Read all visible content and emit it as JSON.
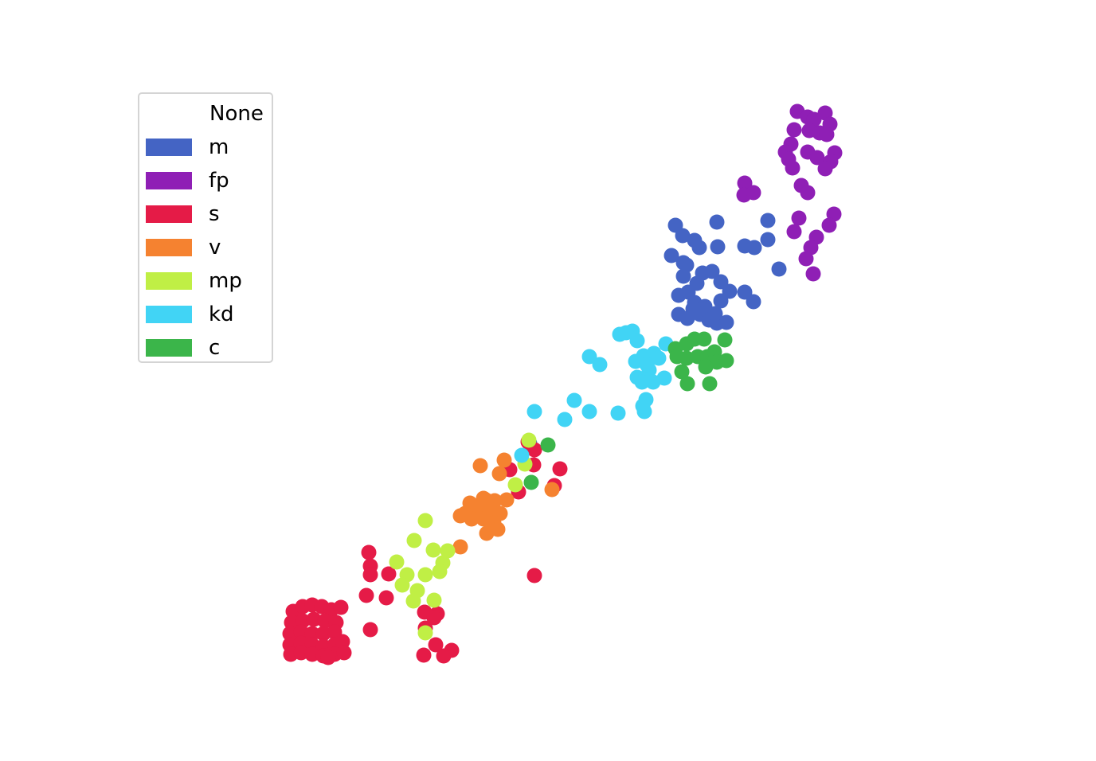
{
  "chart_data": {
    "type": "scatter",
    "legend": {
      "title": "None",
      "placement": "upper-left",
      "entries": [
        {
          "label": "m",
          "color": "#4464c4"
        },
        {
          "label": "fp",
          "color": "#8f1fb5"
        },
        {
          "label": "s",
          "color": "#e51b47"
        },
        {
          "label": "v",
          "color": "#f58230"
        },
        {
          "label": "mp",
          "color": "#c0ef45"
        },
        {
          "label": "kd",
          "color": "#41d4f5"
        },
        {
          "label": "c",
          "color": "#3bb54a"
        }
      ]
    },
    "axes_visible": false,
    "grid": false,
    "xlim": [
      340,
      1060
    ],
    "ylim": [
      840,
      130
    ],
    "series": [
      {
        "name": "m",
        "color": "#4464c4",
        "points": [
          [
            848,
            283
          ],
          [
            857,
            296
          ],
          [
            872,
            302
          ],
          [
            878,
            311
          ],
          [
            900,
            279
          ],
          [
            901,
            310
          ],
          [
            935,
            309
          ],
          [
            947,
            311
          ],
          [
            964,
            277
          ],
          [
            964,
            301
          ],
          [
            978,
            338
          ],
          [
            843,
            321
          ],
          [
            858,
            330
          ],
          [
            862,
            333
          ],
          [
            858,
            347
          ],
          [
            882,
            343
          ],
          [
            894,
            341
          ],
          [
            875,
            356
          ],
          [
            905,
            354
          ],
          [
            916,
            366
          ],
          [
            935,
            367
          ],
          [
            946,
            379
          ],
          [
            852,
            371
          ],
          [
            864,
            367
          ],
          [
            872,
            380
          ],
          [
            885,
            385
          ],
          [
            905,
            378
          ],
          [
            852,
            395
          ],
          [
            863,
            400
          ],
          [
            879,
            395
          ],
          [
            890,
            402
          ],
          [
            900,
            406
          ],
          [
            912,
            405
          ],
          [
            870,
            388
          ],
          [
            898,
            394
          ],
          [
            665,
            557
          ]
        ]
      },
      {
        "name": "fp",
        "color": "#8f1fb5",
        "points": [
          [
            1001,
            140
          ],
          [
            1014,
            147
          ],
          [
            1022,
            150
          ],
          [
            1036,
            142
          ],
          [
            1042,
            156
          ],
          [
            997,
            163
          ],
          [
            1016,
            164
          ],
          [
            1029,
            167
          ],
          [
            1038,
            169
          ],
          [
            993,
            181
          ],
          [
            1014,
            191
          ],
          [
            986,
            191
          ],
          [
            1026,
            198
          ],
          [
            1048,
            192
          ],
          [
            1043,
            203
          ],
          [
            995,
            211
          ],
          [
            1036,
            212
          ],
          [
            935,
            230
          ],
          [
            934,
            245
          ],
          [
            946,
            242
          ],
          [
            1006,
            233
          ],
          [
            1014,
            242
          ],
          [
            1047,
            269
          ],
          [
            1003,
            274
          ],
          [
            1041,
            283
          ],
          [
            997,
            291
          ],
          [
            1025,
            298
          ],
          [
            1018,
            311
          ],
          [
            1012,
            325
          ],
          [
            1021,
            344
          ],
          [
            990,
            200
          ]
        ]
      },
      {
        "name": "s",
        "color": "#e51b47",
        "points": [
          [
            368,
            768
          ],
          [
            380,
            762
          ],
          [
            392,
            760
          ],
          [
            404,
            762
          ],
          [
            416,
            766
          ],
          [
            428,
            763
          ],
          [
            366,
            782
          ],
          [
            380,
            780
          ],
          [
            394,
            778
          ],
          [
            408,
            780
          ],
          [
            422,
            782
          ],
          [
            364,
            796
          ],
          [
            378,
            794
          ],
          [
            392,
            796
          ],
          [
            406,
            796
          ],
          [
            420,
            794
          ],
          [
            364,
            810
          ],
          [
            378,
            808
          ],
          [
            392,
            810
          ],
          [
            406,
            812
          ],
          [
            420,
            810
          ],
          [
            430,
            806
          ],
          [
            365,
            822
          ],
          [
            378,
            820
          ],
          [
            392,
            822
          ],
          [
            406,
            824
          ],
          [
            420,
            822
          ],
          [
            432,
            820
          ],
          [
            463,
            694
          ],
          [
            465,
            711
          ],
          [
            465,
            722
          ],
          [
            488,
            721
          ],
          [
            460,
            748
          ],
          [
            485,
            751
          ],
          [
            465,
            791
          ],
          [
            533,
            769
          ],
          [
            549,
            771
          ],
          [
            545,
            776
          ],
          [
            534,
            789
          ],
          [
            547,
            810
          ],
          [
            567,
            817
          ],
          [
            557,
            824
          ],
          [
            532,
            823
          ],
          [
            663,
            555
          ],
          [
            671,
            565
          ],
          [
            670,
            584
          ],
          [
            640,
            590
          ],
          [
            703,
            589
          ],
          [
            696,
            610
          ],
          [
            651,
            618
          ],
          [
            671,
            723
          ],
          [
            412,
            826
          ]
        ]
      },
      {
        "name": "v",
        "color": "#f58230",
        "points": [
          [
            603,
            585
          ],
          [
            633,
            578
          ],
          [
            627,
            595
          ],
          [
            590,
            632
          ],
          [
            607,
            626
          ],
          [
            621,
            629
          ],
          [
            636,
            628
          ],
          [
            600,
            638
          ],
          [
            615,
            640
          ],
          [
            628,
            645
          ],
          [
            578,
            648
          ],
          [
            592,
            652
          ],
          [
            607,
            652
          ],
          [
            620,
            657
          ],
          [
            611,
            670
          ],
          [
            625,
            665
          ],
          [
            578,
            687
          ],
          [
            693,
            615
          ],
          [
            584,
            645
          ],
          [
            610,
            628
          ]
        ]
      },
      {
        "name": "mp",
        "color": "#c0ef45",
        "points": [
          [
            534,
            654
          ],
          [
            520,
            679
          ],
          [
            544,
            691
          ],
          [
            562,
            692
          ],
          [
            498,
            706
          ],
          [
            556,
            707
          ],
          [
            511,
            722
          ],
          [
            534,
            722
          ],
          [
            552,
            718
          ],
          [
            505,
            735
          ],
          [
            524,
            742
          ],
          [
            519,
            755
          ],
          [
            545,
            754
          ],
          [
            534,
            795
          ],
          [
            647,
            609
          ],
          [
            659,
            583
          ],
          [
            664,
            553
          ]
        ]
      },
      {
        "name": "kd",
        "color": "#41d4f5",
        "points": [
          [
            778,
            420
          ],
          [
            794,
            416
          ],
          [
            800,
            428
          ],
          [
            786,
            418
          ],
          [
            740,
            448
          ],
          [
            753,
            458
          ],
          [
            671,
            517
          ],
          [
            721,
            503
          ],
          [
            709,
            527
          ],
          [
            740,
            517
          ],
          [
            776,
            519
          ],
          [
            809,
            517
          ],
          [
            811,
            502
          ],
          [
            807,
            510
          ],
          [
            798,
            454
          ],
          [
            808,
            447
          ],
          [
            821,
            444
          ],
          [
            836,
            432
          ],
          [
            827,
            450
          ],
          [
            815,
            465
          ],
          [
            800,
            474
          ],
          [
            806,
            480
          ],
          [
            820,
            480
          ],
          [
            834,
            475
          ],
          [
            655,
            572
          ],
          [
            812,
            458
          ]
        ]
      },
      {
        "name": "c",
        "color": "#3bb54a",
        "points": [
          [
            848,
            438
          ],
          [
            862,
            432
          ],
          [
            872,
            426
          ],
          [
            884,
            426
          ],
          [
            910,
            427
          ],
          [
            850,
            448
          ],
          [
            862,
            450
          ],
          [
            876,
            448
          ],
          [
            888,
            448
          ],
          [
            897,
            442
          ],
          [
            900,
            455
          ],
          [
            912,
            453
          ],
          [
            886,
            461
          ],
          [
            856,
            467
          ],
          [
            863,
            482
          ],
          [
            891,
            482
          ],
          [
            688,
            559
          ],
          [
            667,
            606
          ]
        ]
      }
    ]
  }
}
